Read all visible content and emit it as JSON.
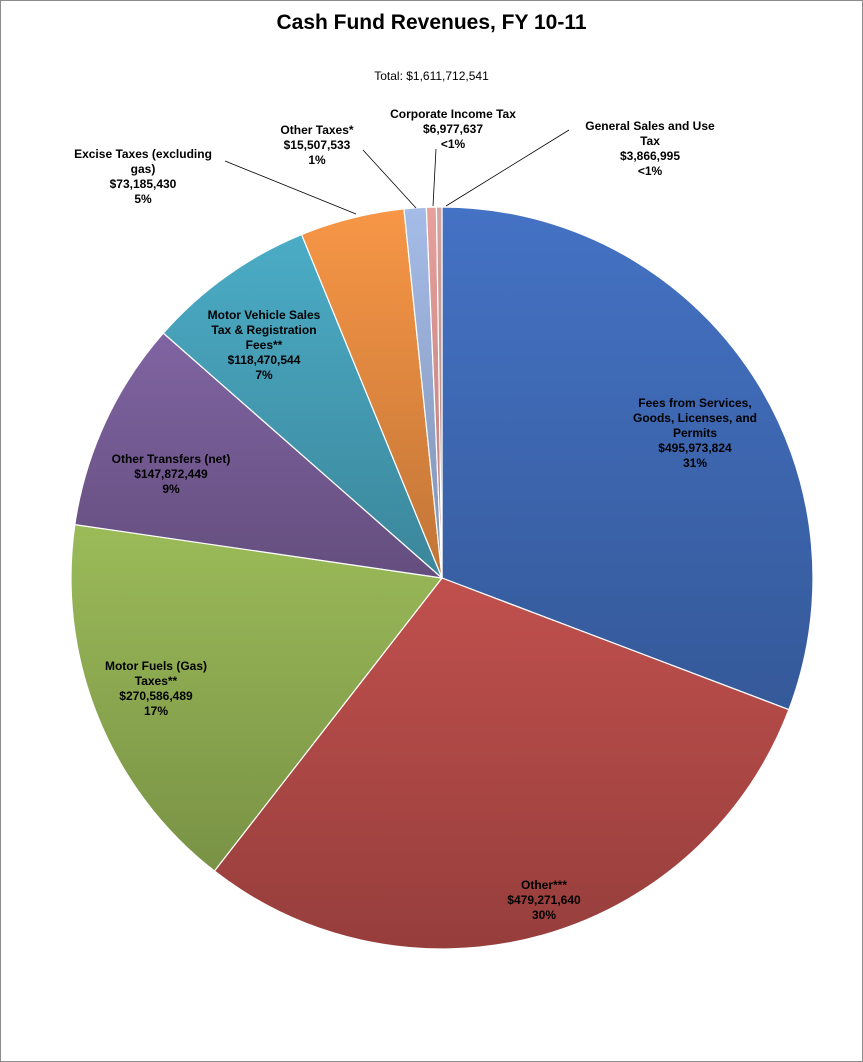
{
  "chart_data": {
    "type": "pie",
    "title": "Cash Fund Revenues, FY 10-11",
    "subtitle": "Total: $1,611,712,541",
    "slices": [
      {
        "label": [
          "Fees from Services,",
          "Goods, Licenses, and",
          "Permits"
        ],
        "amount": "$495,973,824",
        "pct_label": "31%",
        "value": 495973824,
        "color": "#4472C4"
      },
      {
        "label": [
          "Other***"
        ],
        "amount": "$479,271,640",
        "pct_label": "30%",
        "value": 479271640,
        "color": "#C0504D"
      },
      {
        "label": [
          "Motor Fuels (Gas)",
          "Taxes**"
        ],
        "amount": "$270,586,489",
        "pct_label": "17%",
        "value": 270586489,
        "color": "#9BBB59"
      },
      {
        "label": [
          "Other Transfers (net)"
        ],
        "amount": "$147,872,449",
        "pct_label": "9%",
        "value": 147872449,
        "color": "#8064A2"
      },
      {
        "label": [
          "Motor Vehicle Sales",
          "Tax & Registration",
          "Fees**"
        ],
        "amount": "$118,470,544",
        "pct_label": "7%",
        "value": 118470544,
        "color": "#4BACC6"
      },
      {
        "label": [
          "Excise Taxes (excluding",
          "gas)"
        ],
        "amount": "$73,185,430",
        "pct_label": "5%",
        "value": 73185430,
        "color": "#F79646"
      },
      {
        "label": [
          "Other Taxes*"
        ],
        "amount": "$15,507,533",
        "pct_label": "1%",
        "value": 15507533,
        "color": "#A5BCE8"
      },
      {
        "label": [
          "Corporate Income Tax"
        ],
        "amount": "$6,977,637",
        "pct_label": "<1%",
        "value": 6977637,
        "color": "#E8A09C"
      },
      {
        "label": [
          "General Sales and Use",
          "Tax"
        ],
        "amount": "$3,866,995",
        "pct_label": "<1%",
        "value": 3866995,
        "color": "#D4A5A0"
      }
    ]
  }
}
